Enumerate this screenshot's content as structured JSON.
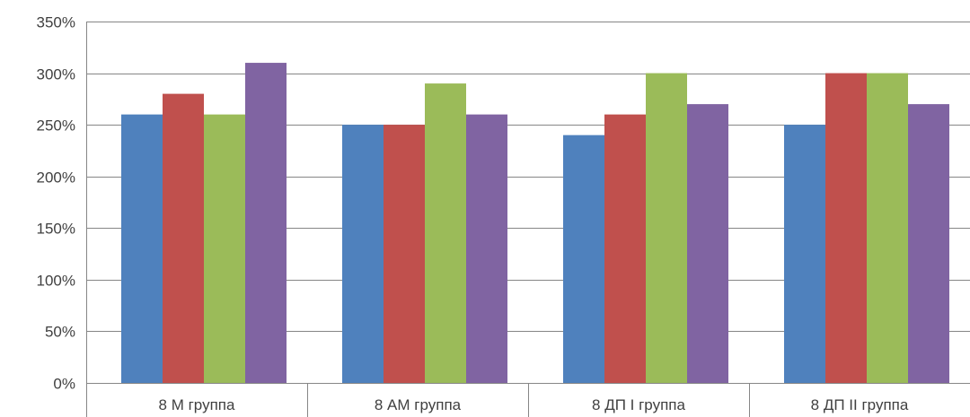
{
  "chart_data": {
    "type": "bar",
    "title": "",
    "xlabel": "",
    "ylabel": "",
    "ylim": [
      0,
      350
    ],
    "y_tick_step": 50,
    "y_tick_format": "percent",
    "grid": true,
    "legend": "none",
    "categories": [
      "8 М группа",
      "8 АМ группа",
      "8 ДП I группа",
      "8 ДП II группа"
    ],
    "series": [
      {
        "color": "#4f81bd",
        "values": [
          260,
          250,
          240,
          250
        ]
      },
      {
        "color": "#c0504d",
        "values": [
          280,
          250,
          260,
          300
        ]
      },
      {
        "color": "#9bbb59",
        "values": [
          260,
          290,
          300,
          300
        ]
      },
      {
        "color": "#8064a2",
        "values": [
          310,
          260,
          270,
          270
        ]
      }
    ]
  }
}
